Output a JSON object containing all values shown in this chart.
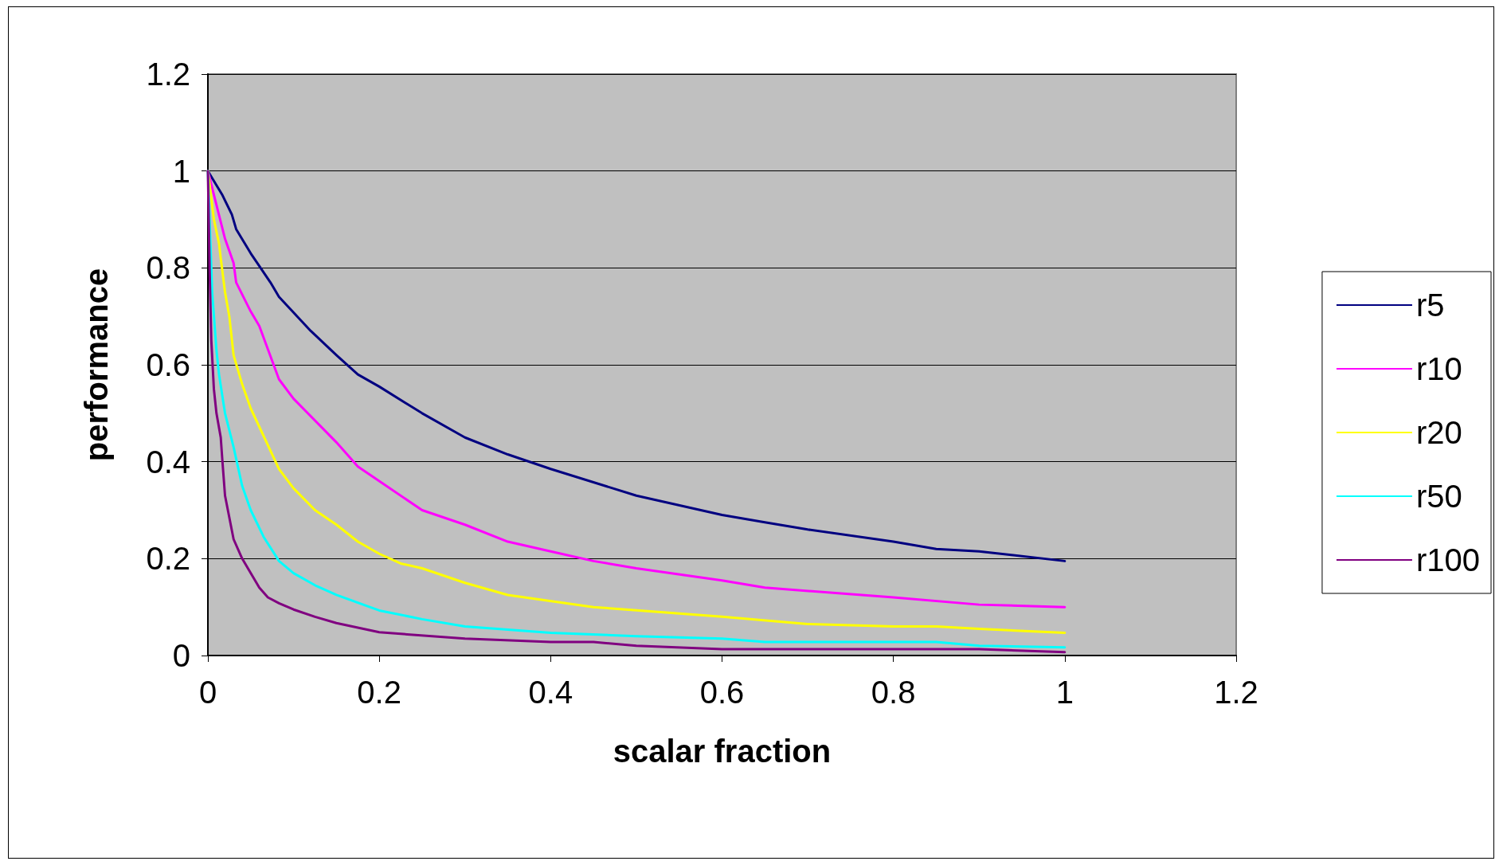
{
  "chart_data": {
    "type": "line",
    "xlabel": "scalar fraction",
    "ylabel": "performance",
    "xlim": [
      0,
      1.2
    ],
    "xticks": [
      0,
      0.2,
      0.4,
      0.6,
      0.8,
      1,
      1.2
    ],
    "ylim": [
      0,
      1.2
    ],
    "yticks": [
      0,
      0.2,
      0.4,
      0.6,
      0.8,
      1,
      1.2
    ],
    "grid": "y",
    "legend": "right",
    "marker": "none",
    "line_style": "solid",
    "series": [
      {
        "name": "r5",
        "color": "#000080",
        "x": [
          0,
          0.017,
          0.028,
          0.033,
          0.05,
          0.073,
          0.083,
          0.12,
          0.15,
          0.175,
          0.2,
          0.25,
          0.3,
          0.35,
          0.4,
          0.5,
          0.6,
          0.65,
          0.7,
          0.8,
          0.85,
          0.9,
          1.0
        ],
        "values": [
          1.0,
          0.95,
          0.91,
          0.88,
          0.83,
          0.77,
          0.74,
          0.67,
          0.62,
          0.58,
          0.555,
          0.5,
          0.45,
          0.415,
          0.385,
          0.33,
          0.29,
          0.275,
          0.26,
          0.235,
          0.22,
          0.215,
          0.195
        ]
      },
      {
        "name": "r10",
        "color": "#ff00ff",
        "x": [
          0,
          0.01,
          0.02,
          0.03,
          0.033,
          0.05,
          0.06,
          0.083,
          0.1,
          0.15,
          0.175,
          0.2,
          0.25,
          0.3,
          0.35,
          0.4,
          0.45,
          0.5,
          0.6,
          0.65,
          0.8,
          0.9,
          1.0
        ],
        "values": [
          1.0,
          0.93,
          0.86,
          0.81,
          0.77,
          0.71,
          0.68,
          0.57,
          0.53,
          0.44,
          0.39,
          0.36,
          0.3,
          0.27,
          0.235,
          0.215,
          0.195,
          0.18,
          0.155,
          0.14,
          0.12,
          0.105,
          0.1
        ]
      },
      {
        "name": "r20",
        "color": "#ffff00",
        "x": [
          0,
          0.007,
          0.013,
          0.015,
          0.02,
          0.025,
          0.03,
          0.04,
          0.05,
          0.083,
          0.1,
          0.125,
          0.15,
          0.175,
          0.2,
          0.225,
          0.25,
          0.3,
          0.35,
          0.45,
          0.6,
          0.7,
          0.8,
          0.85,
          0.9,
          1.0
        ],
        "values": [
          1.0,
          0.9,
          0.85,
          0.82,
          0.75,
          0.7,
          0.62,
          0.56,
          0.51,
          0.385,
          0.345,
          0.3,
          0.27,
          0.235,
          0.21,
          0.19,
          0.18,
          0.15,
          0.125,
          0.1,
          0.08,
          0.065,
          0.06,
          0.06,
          0.055,
          0.047
        ]
      },
      {
        "name": "r50",
        "color": "#00ffff",
        "x": [
          0,
          0.005,
          0.01,
          0.013,
          0.02,
          0.03,
          0.04,
          0.05,
          0.065,
          0.083,
          0.1,
          0.125,
          0.15,
          0.2,
          0.25,
          0.3,
          0.4,
          0.5,
          0.6,
          0.65,
          0.85,
          0.9,
          1.0
        ],
        "values": [
          1.0,
          0.75,
          0.63,
          0.58,
          0.5,
          0.43,
          0.35,
          0.3,
          0.245,
          0.195,
          0.17,
          0.145,
          0.125,
          0.093,
          0.075,
          0.06,
          0.047,
          0.04,
          0.035,
          0.028,
          0.028,
          0.02,
          0.017
        ]
      },
      {
        "name": "r100",
        "color": "#800080",
        "x": [
          0,
          0.002,
          0.004,
          0.007,
          0.01,
          0.015,
          0.017,
          0.02,
          0.03,
          0.04,
          0.05,
          0.06,
          0.07,
          0.083,
          0.1,
          0.125,
          0.15,
          0.2,
          0.3,
          0.4,
          0.45,
          0.5,
          0.6,
          0.9,
          1.0
        ],
        "values": [
          1.0,
          0.8,
          0.65,
          0.55,
          0.5,
          0.45,
          0.4,
          0.33,
          0.24,
          0.2,
          0.17,
          0.14,
          0.12,
          0.108,
          0.095,
          0.08,
          0.067,
          0.048,
          0.035,
          0.028,
          0.028,
          0.02,
          0.013,
          0.013,
          0.007
        ]
      }
    ]
  }
}
